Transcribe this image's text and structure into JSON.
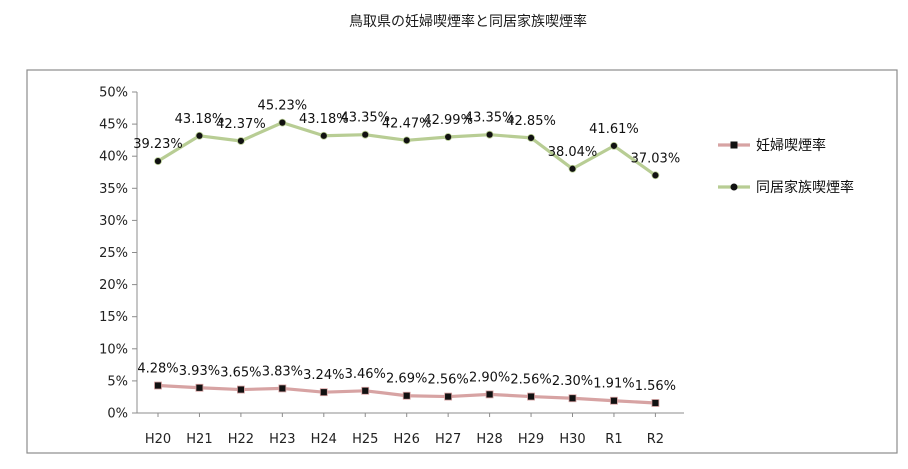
{
  "chart_data": {
    "type": "line",
    "title": "鳥取県の妊婦喫煙率と同居家族喫煙率",
    "categories": [
      "H20",
      "H21",
      "H22",
      "H23",
      "H24",
      "H25",
      "H26",
      "H27",
      "H28",
      "H29",
      "H30",
      "R1",
      "R2"
    ],
    "ylim": [
      0,
      50
    ],
    "ytick_step": 5,
    "ytick_labels": [
      "0%",
      "5%",
      "10%",
      "15%",
      "20%",
      "25%",
      "30%",
      "35%",
      "40%",
      "45%",
      "50%"
    ],
    "grid": false,
    "legend_position": "right",
    "series": [
      {
        "name": "妊婦喫煙率",
        "values": [
          4.28,
          3.93,
          3.65,
          3.83,
          3.24,
          3.46,
          2.69,
          2.56,
          2.9,
          2.56,
          2.3,
          1.91,
          1.56
        ],
        "labels": [
          "4.28%",
          "3.93%",
          "3.65%",
          "3.83%",
          "3.24%",
          "3.46%",
          "2.69%",
          "2.56%",
          "2.90%",
          "2.56%",
          "2.30%",
          "1.91%",
          "1.56%"
        ],
        "line_color": "#d7a3a3",
        "marker": "square",
        "marker_color": "#111111"
      },
      {
        "name": "同居家族喫煙率",
        "values": [
          39.23,
          43.18,
          42.37,
          45.23,
          43.18,
          43.35,
          42.47,
          42.99,
          43.35,
          42.85,
          38.04,
          41.61,
          37.03
        ],
        "labels": [
          "39.23%",
          "43.18%",
          "42.37%",
          "45.23%",
          "43.18%",
          "43.35%",
          "42.47%",
          "42.99%",
          "43.35%",
          "42.85%",
          "38.04%",
          "41.61%",
          "37.03%"
        ],
        "line_color": "#b8cd94",
        "marker": "circle",
        "marker_color": "#111111"
      }
    ]
  }
}
